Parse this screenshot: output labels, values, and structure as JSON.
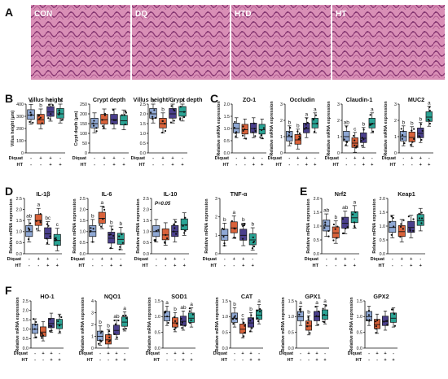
{
  "colors": {
    "CON": "#8fa8d4",
    "DQ": "#d9623a",
    "HTD": "#4a3f8c",
    "HT": "#2aa394"
  },
  "panels": [
    {
      "letter": "A",
      "histology": [
        "CON",
        "DQ",
        "HTD",
        "HT"
      ]
    },
    {
      "letter": "B"
    },
    {
      "letter": "C"
    },
    {
      "letter": "D"
    },
    {
      "letter": "E"
    },
    {
      "letter": "F"
    }
  ],
  "group_rows": {
    "diquat_label": "Diquat",
    "ht_label": "HT",
    "diquat_signs": [
      "-",
      "+",
      "+",
      "-"
    ],
    "ht_signs": [
      "-",
      "-",
      "+",
      "+"
    ]
  },
  "chart_data": [
    {
      "type": "boxplot",
      "id": "villus",
      "title": "Villus height",
      "ylabel": "Villus height (μm)",
      "ylim": [
        0,
        400
      ],
      "yticks": [
        0,
        100,
        200,
        300,
        400
      ],
      "groups": [
        "CON",
        "DQ",
        "HTD",
        "HT"
      ],
      "medians": [
        310,
        272,
        335,
        320
      ],
      "letters": [
        "a",
        "b",
        "a",
        "a"
      ]
    },
    {
      "type": "boxplot",
      "id": "crypt",
      "title": "Crypt depth",
      "ylabel": "Crypt depth (μm)",
      "ylim": [
        0,
        250
      ],
      "yticks": [
        0,
        50,
        100,
        150,
        200,
        250
      ],
      "groups": [
        "CON",
        "DQ",
        "HTD",
        "HT"
      ],
      "medians": [
        150,
        170,
        170,
        165
      ],
      "letters": [
        "",
        "",
        "",
        ""
      ]
    },
    {
      "type": "boxplot",
      "id": "vc",
      "title": "Villus height/Crypt depth",
      "ylabel": "",
      "ylim": [
        0,
        2.5
      ],
      "yticks": [
        0.0,
        0.5,
        1.0,
        1.5,
        2.0,
        2.5
      ],
      "groups": [
        "CON",
        "DQ",
        "HTD",
        "HT"
      ],
      "medians": [
        2.0,
        1.5,
        2.0,
        2.1
      ],
      "letters": [
        "a",
        "b",
        "a",
        "a"
      ]
    },
    {
      "type": "boxplot",
      "id": "zo1",
      "title": "ZO-1",
      "ylabel": "Relative mRNA expression",
      "ylim": [
        0,
        2.0
      ],
      "yticks": [
        0.0,
        0.5,
        1.0,
        1.5,
        2.0
      ],
      "groups": [
        "CON",
        "DQ",
        "HTD",
        "HT"
      ],
      "medians": [
        1.0,
        0.95,
        1.0,
        0.95
      ],
      "letters": [
        "",
        "",
        "",
        ""
      ]
    },
    {
      "type": "boxplot",
      "id": "occludin",
      "title": "Occludin",
      "ylabel": "Relative mRNA expression",
      "ylim": [
        0,
        3
      ],
      "yticks": [
        0,
        1,
        2,
        3
      ],
      "groups": [
        "CON",
        "DQ",
        "HTD",
        "HT"
      ],
      "medians": [
        1.0,
        0.8,
        1.5,
        1.8
      ],
      "letters": [
        "b",
        "b",
        "a",
        "a"
      ]
    },
    {
      "type": "boxplot",
      "id": "claudin1",
      "title": "Claudin-1",
      "ylabel": "Relative mRNA expression",
      "ylim": [
        0,
        3
      ],
      "yticks": [
        0,
        1,
        2,
        3
      ],
      "groups": [
        "CON",
        "DQ",
        "HTD",
        "HT"
      ],
      "medians": [
        1.0,
        0.6,
        0.9,
        1.8
      ],
      "letters": [
        "ab",
        "c",
        "b",
        "a"
      ]
    },
    {
      "type": "boxplot",
      "id": "muc2",
      "title": "MUC2",
      "ylabel": "Relative mRNA expression",
      "ylim": [
        0,
        3
      ],
      "yticks": [
        0,
        1,
        2,
        3
      ],
      "groups": [
        "CON",
        "DQ",
        "HTD",
        "HT"
      ],
      "medians": [
        1.0,
        0.95,
        1.2,
        2.2
      ],
      "letters": [
        "b",
        "b",
        "b",
        "a"
      ]
    },
    {
      "type": "boxplot",
      "id": "il1b",
      "title": "IL-1β",
      "ylabel": "Relative mRNA expression",
      "ylim": [
        0,
        2.5
      ],
      "yticks": [
        0.0,
        0.5,
        1.0,
        1.5,
        2.0,
        2.5
      ],
      "groups": [
        "CON",
        "DQ",
        "HTD",
        "HT"
      ],
      "medians": [
        1.0,
        1.5,
        0.9,
        0.6
      ],
      "letters": [
        "ab",
        "a",
        "bc",
        "c"
      ]
    },
    {
      "type": "boxplot",
      "id": "il6",
      "title": "IL-6",
      "ylabel": "Relative mRNA expression",
      "ylim": [
        0,
        2.5
      ],
      "yticks": [
        0.0,
        0.5,
        1.0,
        1.5,
        2.0,
        2.5
      ],
      "groups": [
        "CON",
        "DQ",
        "HTD",
        "HT"
      ],
      "medians": [
        1.0,
        1.6,
        0.7,
        0.65
      ],
      "letters": [
        "b",
        "a",
        "b",
        "b"
      ]
    },
    {
      "type": "boxplot",
      "id": "il10",
      "title": "IL-10",
      "ylabel": "Relative mRNA expression",
      "ylim": [
        0,
        2.5
      ],
      "yticks": [
        0.0,
        0.5,
        1.0,
        1.5,
        2.0,
        2.5
      ],
      "groups": [
        "CON",
        "DQ",
        "HTD",
        "HT"
      ],
      "medians": [
        1.0,
        0.85,
        1.0,
        1.3
      ],
      "letters": [
        "",
        "",
        "",
        ""
      ],
      "note": "P=0.05"
    },
    {
      "type": "boxplot",
      "id": "tnfa",
      "title": "TNF-α",
      "ylabel": "Relative mRNA expression",
      "ylim": [
        0,
        3
      ],
      "yticks": [
        0,
        1,
        2,
        3
      ],
      "groups": [
        "CON",
        "DQ",
        "HTD",
        "HT"
      ],
      "medians": [
        1.0,
        1.4,
        1.0,
        0.75
      ],
      "letters": [
        "b",
        "a",
        "b",
        "b"
      ]
    },
    {
      "type": "boxplot",
      "id": "nrf2",
      "title": "Nrf2",
      "ylabel": "Relative mRNA expression",
      "ylim": [
        0,
        2.0
      ],
      "yticks": [
        0.0,
        0.5,
        1.0,
        1.5,
        2.0
      ],
      "groups": [
        "CON",
        "DQ",
        "HTD",
        "HT"
      ],
      "medians": [
        1.0,
        0.75,
        1.1,
        1.3
      ],
      "letters": [
        "ab",
        "b",
        "ab",
        "a"
      ]
    },
    {
      "type": "boxplot",
      "id": "keap1",
      "title": "Keap1",
      "ylabel": "Relative mRNA expression",
      "ylim": [
        0,
        2.0
      ],
      "yticks": [
        0.0,
        0.5,
        1.0,
        1.5,
        2.0
      ],
      "groups": [
        "CON",
        "DQ",
        "HTD",
        "HT"
      ],
      "medians": [
        0.95,
        0.8,
        0.95,
        1.2
      ],
      "letters": [
        "",
        "",
        "",
        ""
      ]
    },
    {
      "type": "boxplot",
      "id": "ho1",
      "title": "HO-1",
      "ylabel": "Relative mRNA expression",
      "ylim": [
        0,
        2.5
      ],
      "yticks": [
        0.0,
        0.5,
        1.0,
        1.5,
        2.0,
        2.5
      ],
      "groups": [
        "CON",
        "DQ",
        "HTD",
        "HT"
      ],
      "medians": [
        1.0,
        0.85,
        1.3,
        1.25
      ],
      "letters": [
        "",
        "",
        "",
        ""
      ]
    },
    {
      "type": "boxplot",
      "id": "nqo1",
      "title": "NQO1",
      "ylabel": "Relative mRNA expression",
      "ylim": [
        0,
        4
      ],
      "yticks": [
        0,
        1,
        2,
        3,
        4
      ],
      "groups": [
        "CON",
        "DQ",
        "HTD",
        "HT"
      ],
      "medians": [
        1.0,
        0.7,
        1.5,
        2.2
      ],
      "letters": [
        "b",
        "b",
        "ab",
        "a"
      ]
    },
    {
      "type": "boxplot",
      "id": "sod1",
      "title": "SOD1",
      "ylabel": "Relative mRNA expression",
      "ylim": [
        0,
        1.5
      ],
      "yticks": [
        0.0,
        0.5,
        1.0,
        1.5
      ],
      "groups": [
        "CON",
        "DQ",
        "HTD",
        "HT"
      ],
      "medians": [
        1.0,
        0.8,
        0.85,
        0.95
      ],
      "letters": [
        "a",
        "b",
        "ab",
        "a"
      ]
    },
    {
      "type": "boxplot",
      "id": "cat",
      "title": "CAT",
      "ylabel": "Relative mRNA expression",
      "ylim": [
        0,
        1.5
      ],
      "yticks": [
        0.0,
        0.5,
        1.0,
        1.5
      ],
      "groups": [
        "CON",
        "DQ",
        "HTD",
        "HT"
      ],
      "medians": [
        0.95,
        0.6,
        0.8,
        1.05
      ],
      "letters": [
        "b",
        "c",
        "b",
        "a"
      ]
    },
    {
      "type": "boxplot",
      "id": "gpx1",
      "title": "GPX1",
      "ylabel": "Relative mRNA expression",
      "ylim": [
        0,
        1.5
      ],
      "yticks": [
        0.0,
        0.5,
        1.0,
        1.5
      ],
      "groups": [
        "CON",
        "DQ",
        "HTD",
        "HT"
      ],
      "medians": [
        1.0,
        0.7,
        1.0,
        1.05
      ],
      "letters": [
        "a",
        "b",
        "a",
        "a"
      ]
    },
    {
      "type": "boxplot",
      "id": "gpx2",
      "title": "GPX2",
      "ylabel": "Relative mRNA expression",
      "ylim": [
        0,
        1.5
      ],
      "yticks": [
        0.0,
        0.5,
        1.0,
        1.5
      ],
      "groups": [
        "CON",
        "DQ",
        "HTD",
        "HT"
      ],
      "medians": [
        1.0,
        0.75,
        0.85,
        0.95
      ],
      "letters": [
        "",
        "",
        "",
        ""
      ]
    }
  ]
}
